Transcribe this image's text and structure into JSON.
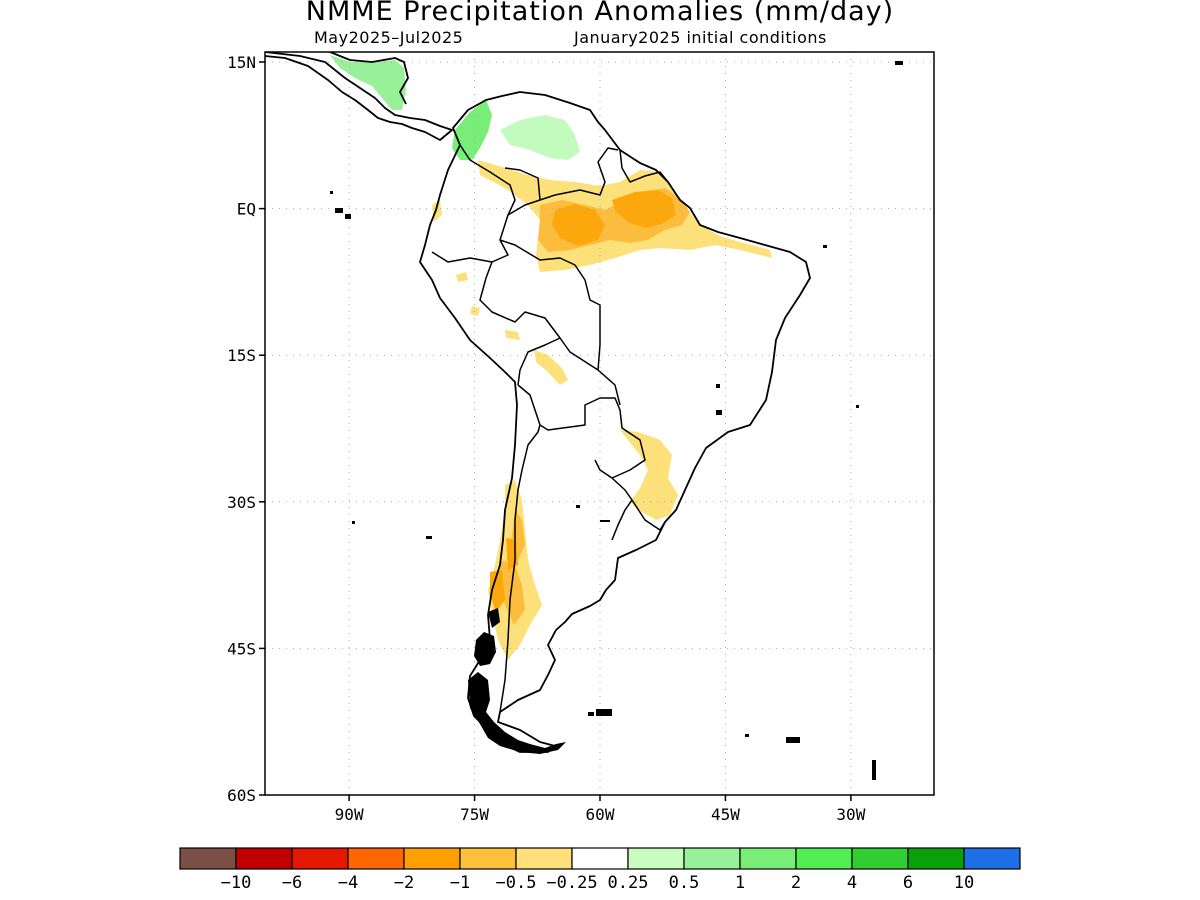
{
  "title": "NMME Precipitation Anomalies (mm/day)",
  "subtitle_left": "May2025–Jul2025",
  "subtitle_right": "January2025 initial conditions",
  "map": {
    "region": "South America",
    "projection": "latitude-longitude",
    "lon_range": [
      -100,
      -20
    ],
    "lat_range": [
      -60,
      15
    ],
    "grid": "dotted",
    "lat_tick_labels": [
      {
        "lat": 15,
        "label": "15N"
      },
      {
        "lat": 0,
        "label": "EQ"
      },
      {
        "lat": -15,
        "label": "15S"
      },
      {
        "lat": -30,
        "label": "30S"
      },
      {
        "lat": -45,
        "label": "45S"
      },
      {
        "lat": -60,
        "label": "60S"
      }
    ],
    "lon_tick_labels": [
      {
        "lon": -90,
        "label": "90W"
      },
      {
        "lon": -75,
        "label": "75W"
      },
      {
        "lon": -60,
        "label": "60W"
      },
      {
        "lon": -45,
        "label": "45W"
      },
      {
        "lon": -30,
        "label": "30W"
      }
    ],
    "coast_color": "#000000",
    "anomaly_regions": [
      {
        "area": "Central America",
        "category": 0.5,
        "color": "#98f098"
      },
      {
        "area": "Northern Colombia",
        "category": 1,
        "color": "#78ee78"
      },
      {
        "area": "Venezuela",
        "category": 0.5,
        "color": "#c3fbbe"
      },
      {
        "area": "Northern Amazon",
        "category": -0.25,
        "color": "#fce17b"
      },
      {
        "area": "Amazon core",
        "category": -0.5,
        "color": "#fcbd3f"
      },
      {
        "area": "Amazon delta",
        "category": -1,
        "color": "#fca70b"
      },
      {
        "area": "Southern Brazil",
        "category": -0.25,
        "color": "#fce17b"
      },
      {
        "area": "Central Andes",
        "category": -0.5,
        "color": "#fcbd3f"
      },
      {
        "area": "Chile coast",
        "category": -1,
        "color": "#fca70b"
      }
    ]
  },
  "colorbar": {
    "colors": [
      "#7b4f45",
      "#c00000",
      "#e41800",
      "#ff6600",
      "#ffa000",
      "#ffc03c",
      "#ffe07c",
      "#ffffff",
      "#c8fcc0",
      "#98f098",
      "#78ee78",
      "#50ee50",
      "#32cd32",
      "#0aa00a",
      "#1e6ee6"
    ],
    "labels": [
      "-10",
      "-6",
      "-4",
      "-2",
      "-1",
      "-0.5",
      "-0.25",
      "0.25",
      "0.5",
      "1",
      "2",
      "4",
      "6",
      "10"
    ]
  }
}
